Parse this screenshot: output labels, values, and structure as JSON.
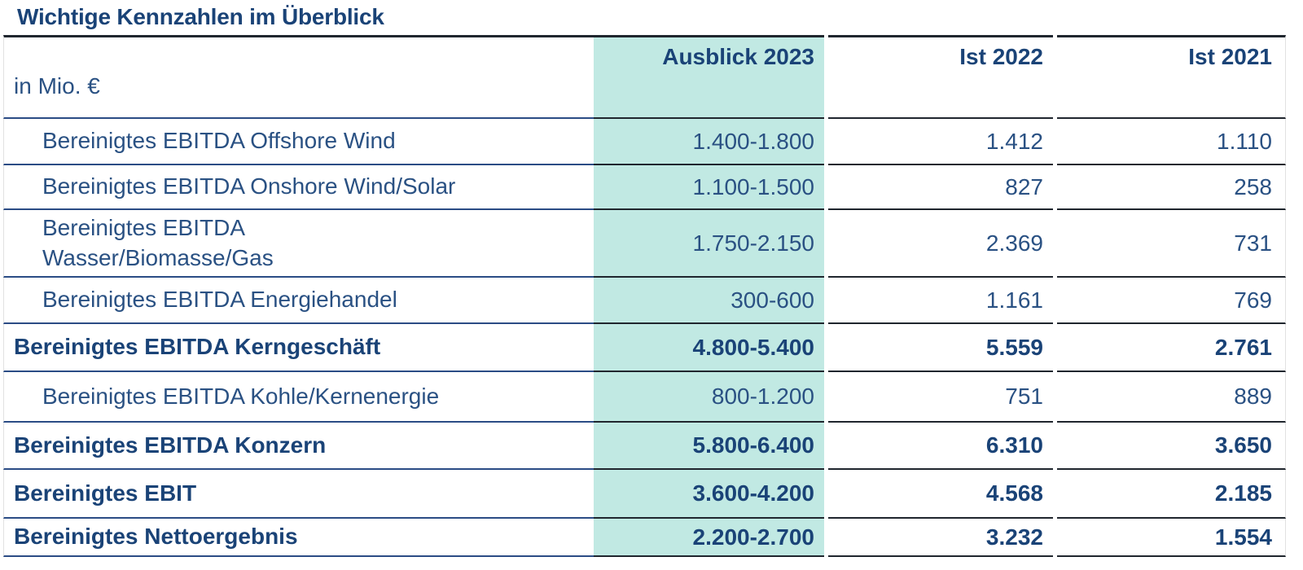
{
  "title": "Wichtige Kennzahlen im Überblick",
  "colors": {
    "accent_teal": "#c1e9e3",
    "text_navy": "#2a5183",
    "text_navy_bold": "#1a4377",
    "rule_dark": "#20262e",
    "rule_navy": "#2b4c85"
  },
  "table": {
    "unit_label": "in Mio. €",
    "columns": [
      "Ausblick 2023",
      "Ist 2022",
      "Ist 2021"
    ],
    "rows": [
      {
        "label": "Bereinigtes EBITDA Offshore Wind",
        "indent": true,
        "bold": false,
        "values": [
          "1.400-1.800",
          "1.412",
          "1.110"
        ]
      },
      {
        "label": "Bereinigtes EBITDA Onshore Wind/Solar",
        "indent": true,
        "bold": false,
        "values": [
          "1.100-1.500",
          "827",
          "258"
        ]
      },
      {
        "label": "Bereinigtes EBITDA\nWasser/Biomasse/Gas",
        "indent": true,
        "bold": false,
        "values": [
          "1.750-2.150",
          "2.369",
          "731"
        ]
      },
      {
        "label": "Bereinigtes EBITDA Energiehandel",
        "indent": true,
        "bold": false,
        "values": [
          "300-600",
          "1.161",
          "769"
        ]
      },
      {
        "label": "Bereinigtes EBITDA Kerngeschäft",
        "indent": false,
        "bold": true,
        "values": [
          "4.800-5.400",
          "5.559",
          "2.761"
        ]
      },
      {
        "label": "Bereinigtes EBITDA Kohle/Kernenergie",
        "indent": true,
        "bold": false,
        "values": [
          "800-1.200",
          "751",
          "889"
        ]
      },
      {
        "label": "Bereinigtes EBITDA Konzern",
        "indent": false,
        "bold": true,
        "values": [
          "5.800-6.400",
          "6.310",
          "3.650"
        ]
      },
      {
        "label": "Bereinigtes EBIT",
        "indent": false,
        "bold": true,
        "values": [
          "3.600-4.200",
          "4.568",
          "2.185"
        ]
      },
      {
        "label": "Bereinigtes Nettoergebnis",
        "indent": false,
        "bold": true,
        "values": [
          "2.200-2.700",
          "3.232",
          "1.554"
        ]
      }
    ]
  }
}
